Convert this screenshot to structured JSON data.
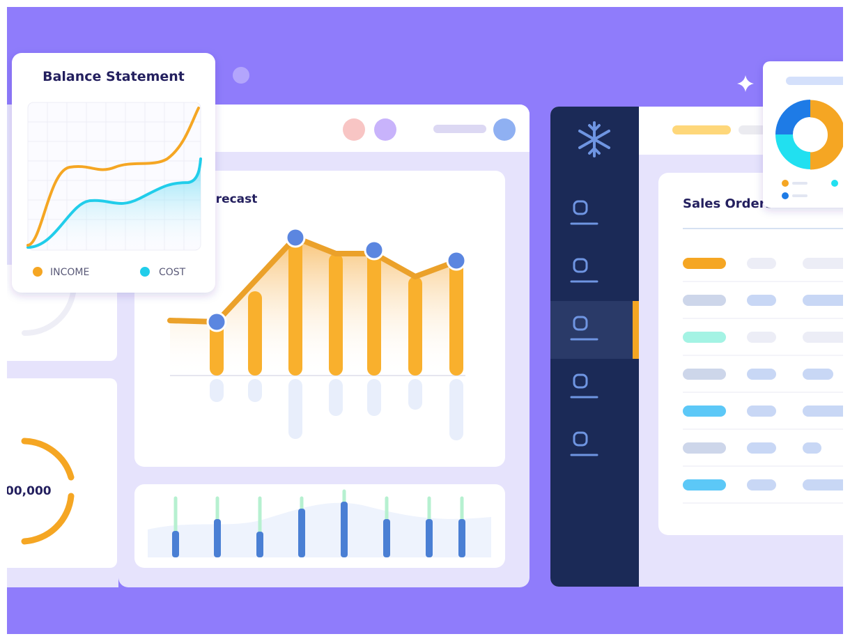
{
  "balance_card": {
    "title": "Balance Statement",
    "legend": [
      "INCOME",
      "COST"
    ]
  },
  "forecast_card": {
    "title": "orecast"
  },
  "left_card": {
    "amount": "00,000"
  },
  "sales_card": {
    "title": "Sales Orders"
  }
}
